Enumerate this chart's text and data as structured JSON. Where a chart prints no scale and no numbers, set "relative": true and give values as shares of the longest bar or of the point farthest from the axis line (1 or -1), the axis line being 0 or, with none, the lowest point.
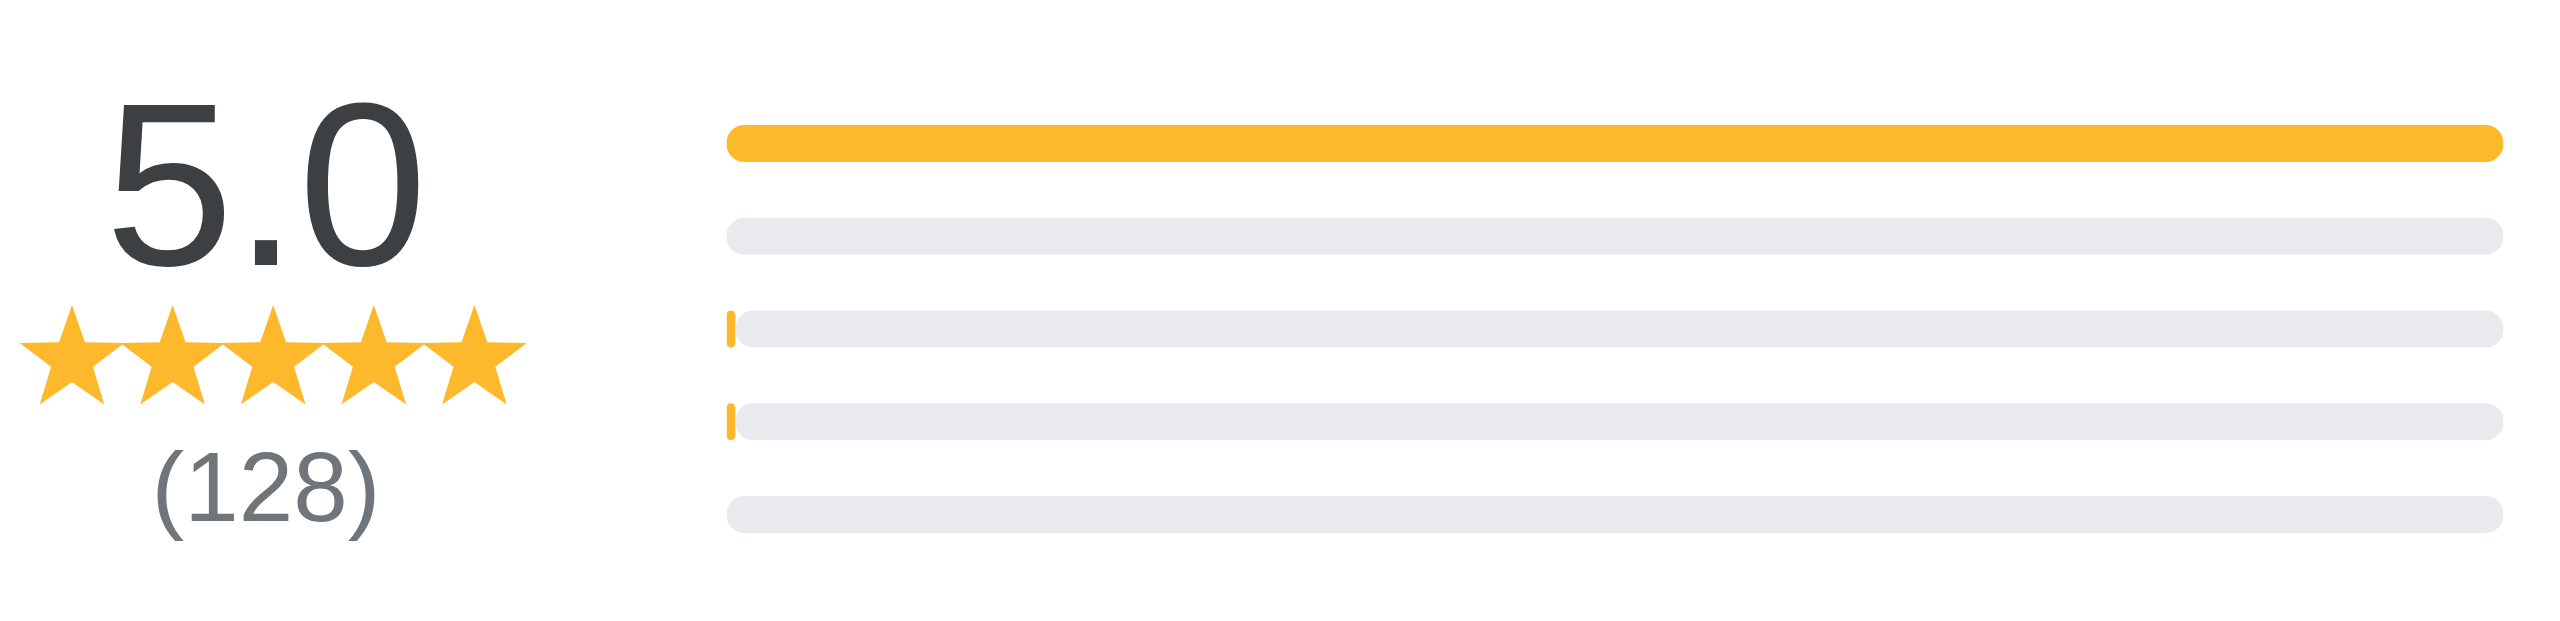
{
  "chart_data": {
    "type": "bar",
    "orientation": "horizontal",
    "stacked": true,
    "relative": true,
    "categories": [
      null,
      null,
      null,
      null,
      null
    ],
    "series": [
      {
        "color": "#fdb92b",
        "values": [
          1,
          0,
          0.005,
          0.005,
          0
        ]
      },
      {
        "color": "#e8eaed",
        "values": [
          0,
          1,
          0.995,
          0.995,
          1
        ]
      }
    ],
    "annotations": [
      "5.0",
      "(128)"
    ]
  }
}
